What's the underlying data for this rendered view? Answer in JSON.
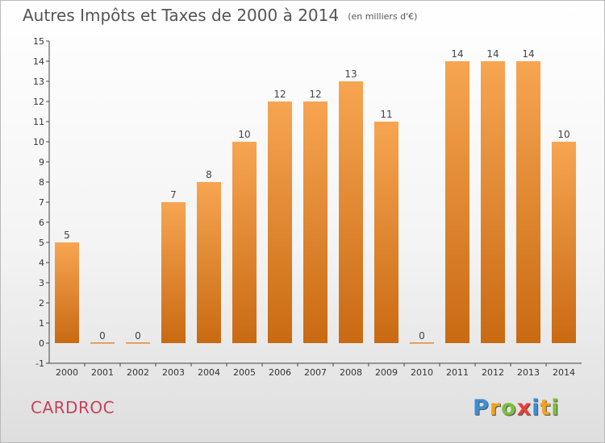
{
  "chart_data": {
    "type": "bar",
    "title": "Autres Impôts et Taxes de 2000 à 2014",
    "unit": "(en milliers d'€)",
    "categories": [
      "2000",
      "2001",
      "2002",
      "2003",
      "2004",
      "2005",
      "2006",
      "2007",
      "2008",
      "2009",
      "2010",
      "2011",
      "2012",
      "2013",
      "2014"
    ],
    "values": [
      5,
      0,
      0,
      7,
      8,
      10,
      12,
      12,
      13,
      11,
      0,
      14,
      14,
      14,
      10
    ],
    "y_ticks": [
      -1,
      0,
      1,
      2,
      3,
      4,
      5,
      6,
      7,
      8,
      9,
      10,
      11,
      12,
      13,
      14,
      15
    ],
    "ylim": [
      -1,
      15
    ],
    "grid": false,
    "colors": {
      "bar_top": "#f7a552",
      "bar_bottom": "#c96a12",
      "axis": "#444444"
    }
  },
  "place_name": "CARDROC",
  "logo": {
    "text": "Proxiti",
    "letters": [
      {
        "ch": "P",
        "color": "#3b8fd6"
      },
      {
        "ch": "r",
        "color": "#f2a21d"
      },
      {
        "ch": "o",
        "color": "#7bbf3a"
      },
      {
        "ch": "x",
        "color": "#e5403a"
      },
      {
        "ch": "i",
        "color": "#3b8fd6"
      },
      {
        "ch": "t",
        "color": "#f2a21d"
      },
      {
        "ch": "i",
        "color": "#7bbf3a"
      }
    ]
  }
}
